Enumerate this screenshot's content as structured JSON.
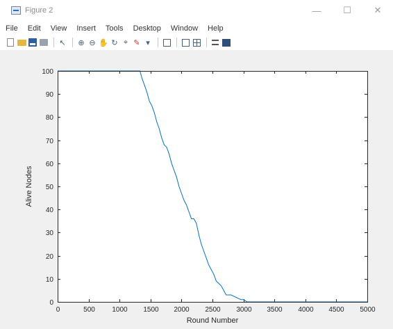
{
  "window": {
    "title": "Figure 2",
    "minimize_glyph": "—",
    "maximize_glyph": "☐",
    "close_glyph": "✕"
  },
  "menu": {
    "items": [
      "File",
      "Edit",
      "View",
      "Insert",
      "Tools",
      "Desktop",
      "Window",
      "Help"
    ]
  },
  "toolbar": {
    "buttons": [
      "new-figure",
      "open-file",
      "save",
      "print",
      "edit-plot",
      "zoom-in",
      "zoom-out",
      "pan",
      "rotate-3d",
      "data-cursor",
      "brush",
      "brush-dropdown",
      "link-plot",
      "insert-colorbar",
      "insert-legend",
      "hide-plot-tools",
      "show-plot-tools"
    ]
  },
  "chart_data": {
    "type": "line",
    "title": "",
    "xlabel": "Round Number",
    "ylabel": "Alive Nodes",
    "xlim": [
      0,
      5000
    ],
    "ylim": [
      0,
      100
    ],
    "xticks": [
      0,
      500,
      1000,
      1500,
      2000,
      2500,
      3000,
      3500,
      4000,
      4500,
      5000
    ],
    "yticks": [
      0,
      10,
      20,
      30,
      40,
      50,
      60,
      70,
      80,
      90,
      100
    ],
    "grid": false,
    "line_color": "#0072bd",
    "series": [
      {
        "x": [
          0,
          1330,
          1360,
          1400,
          1440,
          1480,
          1520,
          1560,
          1600,
          1640,
          1680,
          1720,
          1760,
          1800,
          1840,
          1880,
          1920,
          1960,
          2000,
          2040,
          2080,
          2120,
          2160,
          2200,
          2240,
          2280,
          2320,
          2360,
          2400,
          2440,
          2480,
          2520,
          2560,
          2600,
          2640,
          2680,
          2720,
          2760,
          2800,
          2880,
          2960,
          3000,
          3060,
          5000
        ],
        "y": [
          100,
          100,
          97,
          94,
          91,
          87,
          85,
          82,
          78,
          75,
          71,
          68,
          67,
          64,
          60,
          57,
          54,
          50,
          47,
          44,
          42,
          39,
          36,
          36,
          34,
          29,
          25,
          22,
          19,
          16,
          14,
          12,
          9,
          8,
          7,
          5,
          3,
          3,
          3,
          2,
          1,
          1,
          0,
          0
        ]
      }
    ]
  }
}
